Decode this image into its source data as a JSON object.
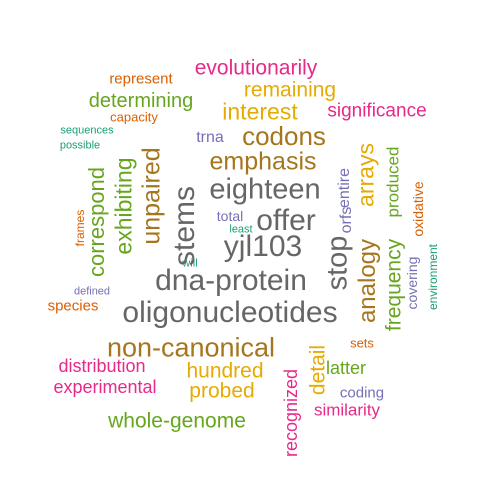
{
  "palette": {
    "orange": "#d95f02",
    "green": "#66a61e",
    "pink": "#e7298a",
    "gold": "#e6ab02",
    "brown": "#a6761d",
    "purple": "#7570b3",
    "teal": "#1b9e77",
    "gray": "#666666"
  },
  "words": [
    {
      "text": "evolutionarily",
      "color": "pink"
    },
    {
      "text": "represent",
      "color": "orange"
    },
    {
      "text": "remaining",
      "color": "gold"
    },
    {
      "text": "determining",
      "color": "green"
    },
    {
      "text": "interest",
      "color": "gold"
    },
    {
      "text": "significance",
      "color": "pink"
    },
    {
      "text": "capacity",
      "color": "orange"
    },
    {
      "text": "sequences",
      "color": "teal"
    },
    {
      "text": "possible",
      "color": "teal"
    },
    {
      "text": "trna",
      "color": "purple"
    },
    {
      "text": "codons",
      "color": "brown"
    },
    {
      "text": "emphasis",
      "color": "brown"
    },
    {
      "text": "eighteen",
      "color": "gray"
    },
    {
      "text": "entire",
      "color": "purple"
    },
    {
      "text": "offer",
      "color": "gray"
    },
    {
      "text": "total",
      "color": "purple"
    },
    {
      "text": "least",
      "color": "teal"
    },
    {
      "text": "yjl103",
      "color": "gray"
    },
    {
      "text": "will",
      "color": "teal"
    },
    {
      "text": "dna-protein",
      "color": "gray"
    },
    {
      "text": "defined",
      "color": "purple"
    },
    {
      "text": "species",
      "color": "orange"
    },
    {
      "text": "oligonucleotides",
      "color": "gray"
    },
    {
      "text": "non-canonical",
      "color": "brown"
    },
    {
      "text": "sets",
      "color": "orange"
    },
    {
      "text": "distribution",
      "color": "pink"
    },
    {
      "text": "hundred",
      "color": "gold"
    },
    {
      "text": "latter",
      "color": "green"
    },
    {
      "text": "experimental",
      "color": "pink"
    },
    {
      "text": "probed",
      "color": "gold"
    },
    {
      "text": "coding",
      "color": "purple"
    },
    {
      "text": "similarity",
      "color": "pink"
    },
    {
      "text": "whole-genome",
      "color": "green"
    },
    {
      "text": "frames",
      "color": "orange"
    },
    {
      "text": "correspond",
      "color": "green"
    },
    {
      "text": "exhibiting",
      "color": "green"
    },
    {
      "text": "unpaired",
      "color": "brown"
    },
    {
      "text": "stems",
      "color": "gray"
    },
    {
      "text": "orfs",
      "color": "purple"
    },
    {
      "text": "arrays",
      "color": "gold"
    },
    {
      "text": "stop",
      "color": "gray"
    },
    {
      "text": "analogy",
      "color": "brown"
    },
    {
      "text": "produced",
      "color": "green"
    },
    {
      "text": "frequency",
      "color": "green"
    },
    {
      "text": "oxidative",
      "color": "orange"
    },
    {
      "text": "covering",
      "color": "purple"
    },
    {
      "text": "environment",
      "color": "teal"
    },
    {
      "text": "detail",
      "color": "gold"
    },
    {
      "text": "recognized",
      "color": "pink"
    }
  ]
}
